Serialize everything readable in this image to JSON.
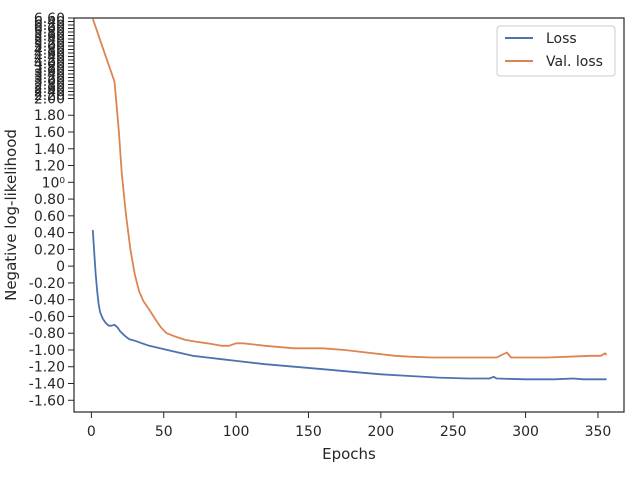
{
  "chart_data": {
    "type": "line",
    "title": "",
    "xlabel": "Epochs",
    "ylabel": "Negative log-likelihood",
    "xlim": [
      -12,
      368
    ],
    "ylim": [
      -1.74,
      2.96
    ],
    "grid": false,
    "legend_position": "top-right",
    "x_ticks": [
      0,
      50,
      100,
      150,
      200,
      250,
      300,
      350
    ],
    "x_tick_labels": [
      "0",
      "50",
      "100",
      "150",
      "200",
      "250",
      "300",
      "350"
    ],
    "y_ticks": [
      -1.6,
      -1.4,
      -1.2,
      -1.0,
      -0.8,
      -0.6,
      -0.4,
      -0.2,
      0,
      0.2,
      0.4,
      0.6,
      0.8,
      1.0,
      1.2,
      1.4,
      1.6,
      1.8,
      2.0
    ],
    "y_tick_labels": [
      "-1.60",
      "-1.40",
      "-1.20",
      "-1.00",
      "-0.80",
      "-0.60",
      "-0.40",
      "-0.20",
      "0",
      "0.20",
      "0.40",
      "0.60",
      "0.80",
      "10⁰",
      "1.20",
      "1.40",
      "1.60",
      "1.80",
      "2.00"
    ],
    "y_tick_labels_crowded_top": [
      "2.20",
      "2.40",
      "2.60",
      "2.80",
      "3.00",
      "3.20",
      "3.40",
      "3.60",
      "3.80",
      "4.00",
      "4.20",
      "4.40",
      "4.60",
      "4.80",
      "5.00",
      "5.20",
      "5.40",
      "5.60",
      "5.80",
      "6.00",
      "6.20",
      "6.40",
      "6.60"
    ],
    "series": [
      {
        "name": "Loss",
        "color": "#4c72b0",
        "points": [
          [
            1,
            0.43
          ],
          [
            2,
            0.15
          ],
          [
            3,
            -0.1
          ],
          [
            4,
            -0.3
          ],
          [
            5,
            -0.45
          ],
          [
            6,
            -0.55
          ],
          [
            8,
            -0.63
          ],
          [
            10,
            -0.68
          ],
          [
            12,
            -0.71
          ],
          [
            14,
            -0.71
          ],
          [
            16,
            -0.7
          ],
          [
            18,
            -0.73
          ],
          [
            20,
            -0.78
          ],
          [
            23,
            -0.83
          ],
          [
            26,
            -0.87
          ],
          [
            30,
            -0.89
          ],
          [
            35,
            -0.92
          ],
          [
            40,
            -0.95
          ],
          [
            50,
            -0.99
          ],
          [
            60,
            -1.03
          ],
          [
            70,
            -1.07
          ],
          [
            80,
            -1.09
          ],
          [
            90,
            -1.11
          ],
          [
            100,
            -1.13
          ],
          [
            120,
            -1.17
          ],
          [
            140,
            -1.2
          ],
          [
            160,
            -1.23
          ],
          [
            180,
            -1.26
          ],
          [
            200,
            -1.29
          ],
          [
            220,
            -1.31
          ],
          [
            240,
            -1.33
          ],
          [
            260,
            -1.34
          ],
          [
            275,
            -1.34
          ],
          [
            278,
            -1.32
          ],
          [
            280,
            -1.34
          ],
          [
            300,
            -1.35
          ],
          [
            320,
            -1.35
          ],
          [
            333,
            -1.34
          ],
          [
            340,
            -1.35
          ],
          [
            356,
            -1.35
          ]
        ]
      },
      {
        "name": "Val. loss",
        "color": "#dd8452",
        "points": [
          [
            1,
            2.95
          ],
          [
            4,
            2.8
          ],
          [
            8,
            2.6
          ],
          [
            12,
            2.4
          ],
          [
            16,
            2.2
          ],
          [
            17,
            2.0
          ],
          [
            19,
            1.6
          ],
          [
            21,
            1.1
          ],
          [
            24,
            0.6
          ],
          [
            27,
            0.2
          ],
          [
            30,
            -0.1
          ],
          [
            33,
            -0.3
          ],
          [
            36,
            -0.42
          ],
          [
            40,
            -0.52
          ],
          [
            44,
            -0.63
          ],
          [
            48,
            -0.73
          ],
          [
            52,
            -0.8
          ],
          [
            58,
            -0.84
          ],
          [
            65,
            -0.88
          ],
          [
            72,
            -0.9
          ],
          [
            80,
            -0.92
          ],
          [
            90,
            -0.95
          ],
          [
            95,
            -0.95
          ],
          [
            100,
            -0.92
          ],
          [
            105,
            -0.92
          ],
          [
            120,
            -0.95
          ],
          [
            140,
            -0.98
          ],
          [
            160,
            -0.98
          ],
          [
            175,
            -1.0
          ],
          [
            190,
            -1.03
          ],
          [
            200,
            -1.05
          ],
          [
            210,
            -1.07
          ],
          [
            220,
            -1.08
          ],
          [
            235,
            -1.09
          ],
          [
            250,
            -1.09
          ],
          [
            265,
            -1.09
          ],
          [
            280,
            -1.09
          ],
          [
            287,
            -1.03
          ],
          [
            290,
            -1.09
          ],
          [
            300,
            -1.09
          ],
          [
            315,
            -1.09
          ],
          [
            330,
            -1.08
          ],
          [
            345,
            -1.07
          ],
          [
            352,
            -1.07
          ],
          [
            355,
            -1.04
          ],
          [
            356,
            -1.06
          ]
        ]
      }
    ]
  }
}
